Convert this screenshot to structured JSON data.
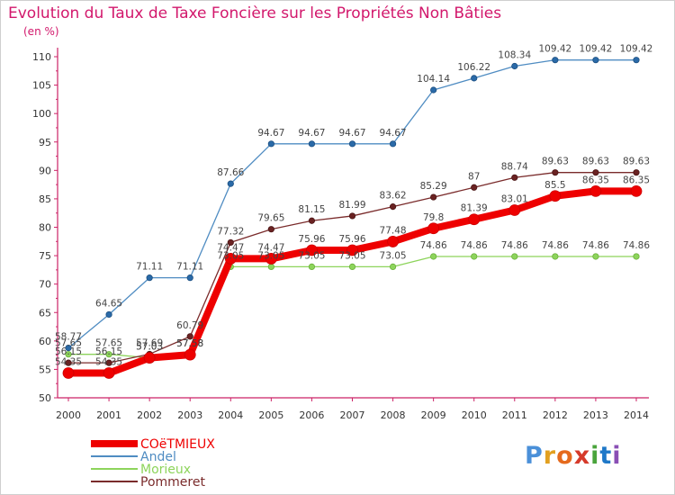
{
  "chart": {
    "title": "Evolution du Taux de Taxe Foncière sur les Propriétés Non Bâties",
    "subtitle": "(en %)"
  },
  "chart_data": {
    "type": "line",
    "x": [
      2000,
      2001,
      2002,
      2003,
      2004,
      2005,
      2006,
      2007,
      2008,
      2009,
      2010,
      2011,
      2012,
      2013,
      2014
    ],
    "xticks": [
      "2000",
      "2001",
      "2002",
      "2003",
      "2004",
      "2005",
      "2006",
      "2007",
      "2008",
      "2009",
      "2010",
      "2011",
      "2012",
      "2013",
      "2014"
    ],
    "ylim": [
      50,
      110
    ],
    "yticks": [
      "50",
      "55",
      "60",
      "65",
      "70",
      "75",
      "80",
      "85",
      "90",
      "95",
      "100",
      "105",
      "110"
    ],
    "grid": false,
    "legend": "bottom-left",
    "series": [
      {
        "name": "COëTMIEUX",
        "color": "#ee0000",
        "values": [
          54.35,
          54.35,
          57.03,
          57.58,
          74.47,
          74.47,
          75.96,
          75.96,
          77.48,
          79.8,
          81.39,
          83.01,
          85.5,
          86.35,
          86.35
        ],
        "labels": [
          "54.35",
          "54.35",
          "57.03",
          "57.58",
          "74.47",
          "74.47",
          "75.96",
          "75.96",
          "77.48",
          "79.8",
          "81.39",
          "83.01",
          "85.5",
          "86.35",
          "86.35"
        ]
      },
      {
        "name": "Andel",
        "color": "#4f8cc2",
        "values": [
          58.77,
          64.65,
          71.11,
          71.11,
          87.66,
          94.67,
          94.67,
          94.67,
          94.67,
          104.14,
          106.22,
          108.34,
          109.42,
          109.42,
          109.42
        ],
        "labels": [
          "58.77",
          "64.65",
          "71.11",
          "71.11",
          "87.66",
          "94.67",
          "94.67",
          "94.67",
          "94.67",
          "104.14",
          "106.22",
          "108.34",
          "109.42",
          "109.42",
          "109.42"
        ]
      },
      {
        "name": "Morieux",
        "color": "#8dd45b",
        "values": [
          57.65,
          57.65,
          57.03,
          57.58,
          73.05,
          73.05,
          73.05,
          73.05,
          73.05,
          74.86,
          74.86,
          74.86,
          74.86,
          74.86,
          74.86
        ],
        "labels": [
          "57.65",
          "57.65",
          "57.03",
          "57.58",
          "73.05",
          "73.05",
          "73.05",
          "73.05",
          "73.05",
          "74.86",
          "74.86",
          "74.86",
          "74.86",
          "74.86",
          "74.86"
        ]
      },
      {
        "name": "Pommeret",
        "color": "#7a2b2b",
        "values": [
          56.15,
          56.15,
          57.69,
          60.79,
          77.32,
          79.65,
          81.15,
          81.99,
          83.62,
          85.29,
          87,
          88.74,
          89.63,
          89.63,
          89.63
        ],
        "labels": [
          "56.15",
          "56.15",
          "57.69",
          "60.79",
          "77.32",
          "79.65",
          "81.15",
          "81.99",
          "83.62",
          "85.29",
          "87",
          "88.74",
          "89.63",
          "89.63",
          "89.63"
        ]
      }
    ]
  },
  "brand": {
    "logo": "Proxiti"
  }
}
